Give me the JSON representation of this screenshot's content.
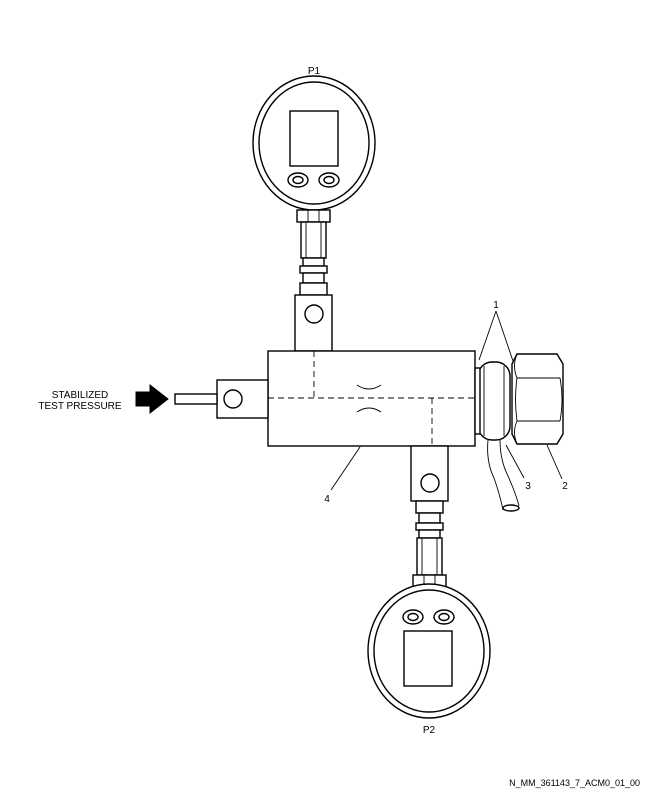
{
  "labels": {
    "gauge_top": "P1",
    "gauge_bottom": "P2",
    "input_line1": "STABILIZED",
    "input_line2": "TEST PRESSURE",
    "callout_1": "1",
    "callout_2": "2",
    "callout_3": "3",
    "callout_4": "4"
  },
  "figure_id": "N_MM_361143_7_ACM0_01_00"
}
